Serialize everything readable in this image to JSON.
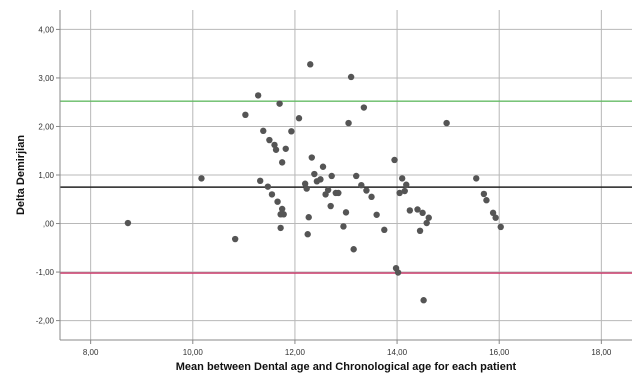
{
  "chart_data": {
    "type": "scatter",
    "xlabel": "Mean between Dental age and Chronological age for each patient",
    "ylabel": "Delta Demirjian",
    "xlim": [
      7.4,
      18.6
    ],
    "ylim": [
      -2.4,
      4.4
    ],
    "xticks": [
      8,
      10,
      12,
      14,
      16,
      18
    ],
    "xtick_labels": [
      "8,00",
      "10,00",
      "12,00",
      "14,00",
      "16,00",
      "18,00"
    ],
    "yticks": [
      -2,
      -1,
      0,
      1,
      2,
      3,
      4
    ],
    "ytick_labels": [
      "-2,00",
      "-1,00",
      ",00",
      "1,00",
      "2,00",
      "3,00",
      "4,00"
    ],
    "grid": true,
    "reference_lines": [
      {
        "y": 2.52,
        "color": "#66bb66"
      },
      {
        "y": 0.75,
        "color": "#222222"
      },
      {
        "y": -1.02,
        "color": "#cc3366"
      }
    ],
    "point_color": "#555555",
    "x": [
      8.73,
      10.17,
      10.83,
      11.03,
      11.28,
      11.32,
      11.38,
      11.47,
      11.5,
      11.55,
      11.6,
      11.63,
      11.66,
      11.7,
      11.72,
      11.72,
      11.75,
      11.75,
      11.78,
      11.82,
      11.93,
      12.08,
      12.2,
      12.23,
      12.25,
      12.27,
      12.3,
      12.33,
      12.38,
      12.43,
      12.5,
      12.55,
      12.6,
      12.65,
      12.7,
      12.72,
      12.8,
      12.85,
      12.95,
      13.0,
      13.05,
      13.1,
      13.15,
      13.2,
      13.3,
      13.35,
      13.4,
      13.5,
      13.6,
      13.75,
      13.95,
      13.98,
      14.02,
      14.05,
      14.1,
      14.15,
      14.18,
      14.25,
      14.4,
      14.45,
      14.5,
      14.52,
      14.58,
      14.62,
      14.97,
      15.55,
      15.7,
      15.75,
      15.88,
      15.93,
      16.03
    ],
    "y": [
      0.01,
      0.93,
      -0.32,
      2.24,
      2.64,
      0.88,
      1.91,
      0.76,
      1.72,
      0.6,
      1.62,
      1.52,
      0.45,
      2.47,
      -0.09,
      0.19,
      0.3,
      1.26,
      0.19,
      1.54,
      1.9,
      2.17,
      0.82,
      0.72,
      -0.22,
      0.13,
      3.28,
      1.36,
      1.02,
      0.87,
      0.91,
      1.17,
      0.6,
      0.69,
      0.36,
      0.98,
      0.63,
      0.63,
      -0.06,
      0.23,
      2.07,
      3.02,
      -0.53,
      0.98,
      0.79,
      2.39,
      0.68,
      0.55,
      0.18,
      -0.13,
      1.31,
      -0.92,
      -1.01,
      0.63,
      0.93,
      0.67,
      0.8,
      0.27,
      0.29,
      -0.15,
      0.22,
      -1.58,
      0.01,
      0.12,
      2.07,
      0.93,
      0.61,
      0.48,
      0.22,
      0.12,
      -0.07
    ]
  }
}
